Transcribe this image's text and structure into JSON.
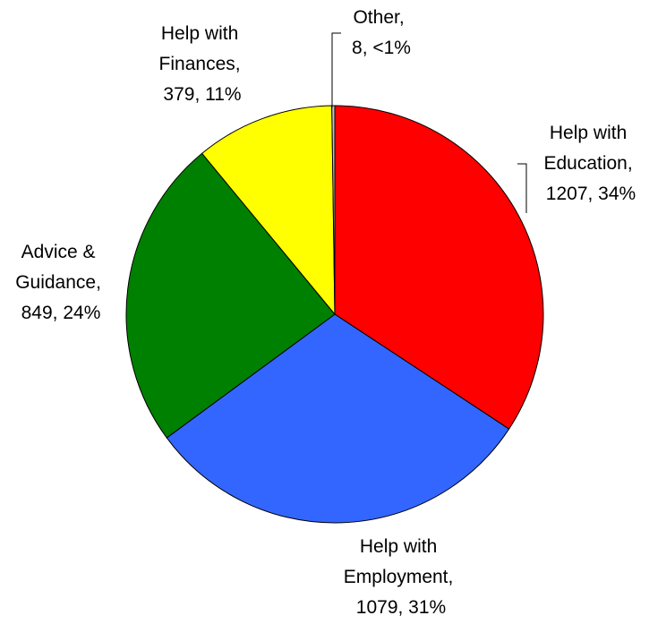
{
  "chart_data": {
    "type": "pie",
    "title": "",
    "start": "top, clockwise",
    "slices": [
      {
        "label": [
          "Help with",
          "Education,",
          "1207, 34%"
        ],
        "name": "Help with Education",
        "value": 1207,
        "percent_label": "34%",
        "color": "#ff0000"
      },
      {
        "label": [
          "Help with",
          "Employment,",
          "1079, 31%"
        ],
        "name": "Help with Employment",
        "value": 1079,
        "percent_label": "31%",
        "color": "#3366ff"
      },
      {
        "label": [
          "Advice &",
          "Guidance,",
          "849, 24%"
        ],
        "name": "Advice & Guidance",
        "value": 849,
        "percent_label": "24%",
        "color": "#008000"
      },
      {
        "label": [
          "Help with",
          "Finances,",
          "379, 11%"
        ],
        "name": "Help with Finances",
        "value": 379,
        "percent_label": "11%",
        "color": "#ffff00"
      },
      {
        "label": [
          "Other,",
          "8, <1%"
        ],
        "name": "Other",
        "value": 8,
        "percent_label": "<1%",
        "color": "#c0c0c0"
      }
    ]
  }
}
